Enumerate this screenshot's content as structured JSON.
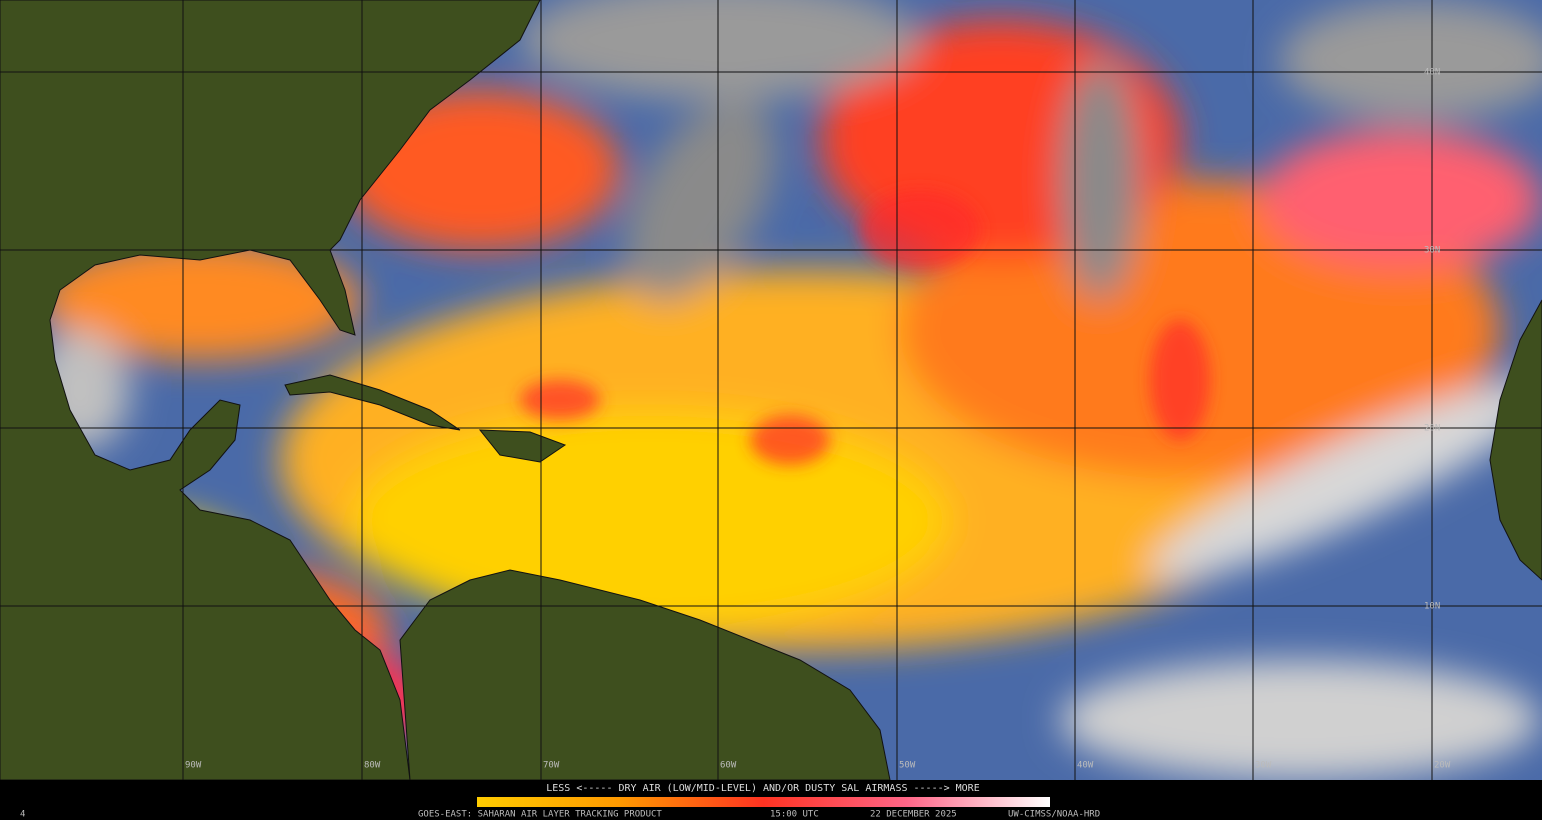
{
  "map": {
    "latitude_labels": [
      "40N",
      "30N",
      "20N",
      "10N"
    ],
    "longitude_labels": [
      "90W",
      "80W",
      "70W",
      "60W",
      "50W",
      "40W",
      "30W",
      "20W"
    ]
  },
  "legend": {
    "caption": "LESS <----- DRY AIR (LOW/MID-LEVEL) AND/OR DUSTY SAL AIRMASS -----> MORE"
  },
  "footer": {
    "frame": "4",
    "product": "GOES-EAST: SAHARAN AIR LAYER TRACKING PRODUCT",
    "time": "15:00 UTC",
    "date": "22 DECEMBER 2025",
    "credit": "UW-CIMSS/NOAA-HRD"
  }
}
